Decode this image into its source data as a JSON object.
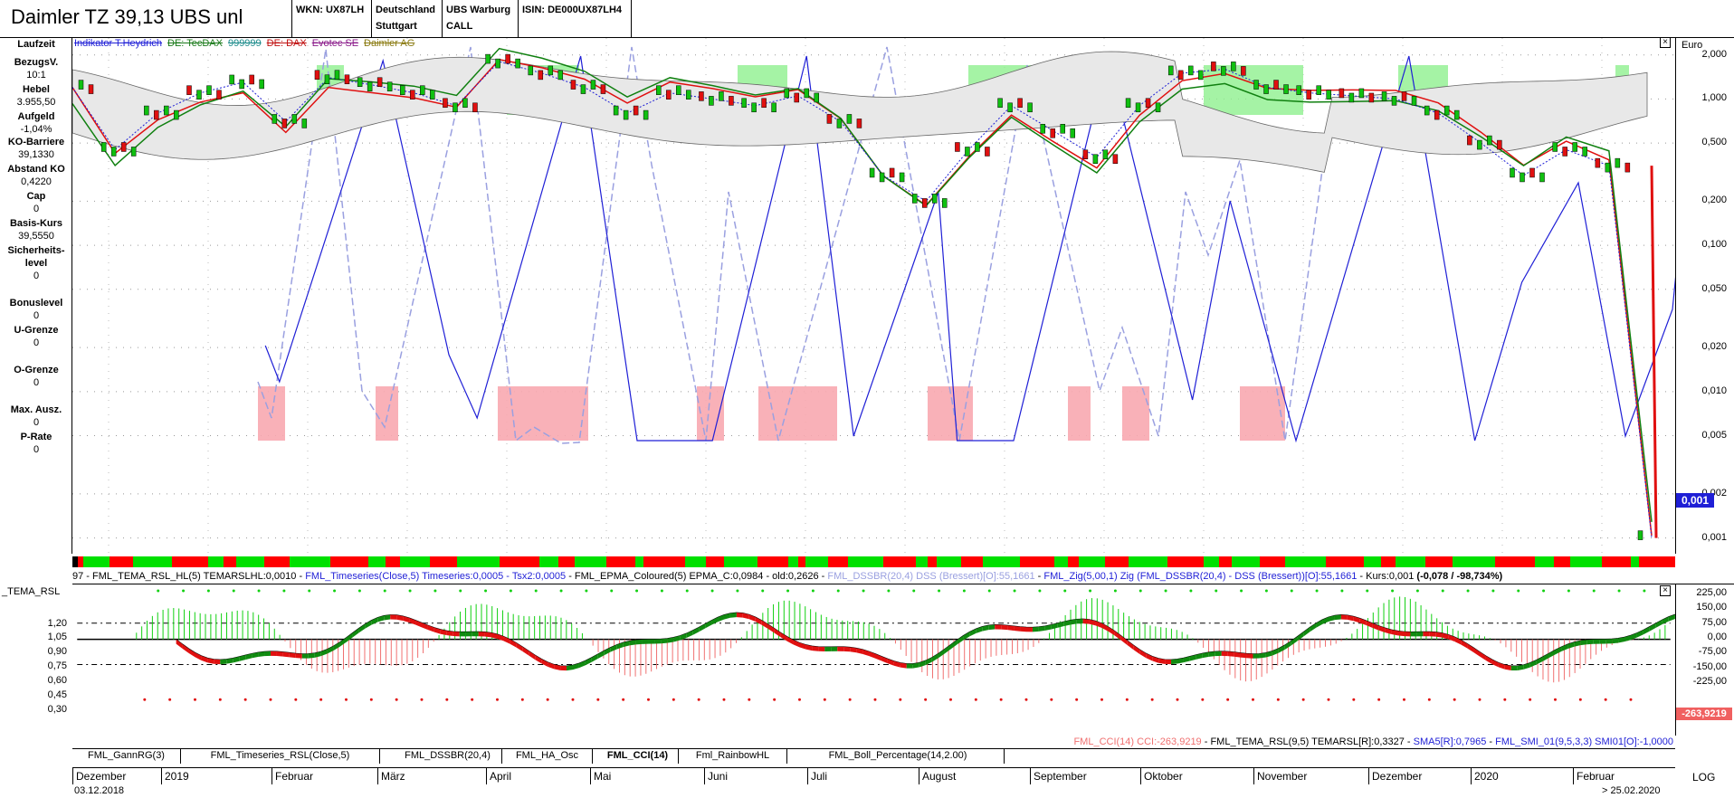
{
  "header": {
    "title": "Daimler TZ 39,13     UBS  unl",
    "boxes": [
      {
        "line1": "WKN: UX87LH",
        "line2": ""
      },
      {
        "line1": "Deutschland",
        "line2": "Stuttgart"
      },
      {
        "line1": "UBS Warburg",
        "line2": "CALL"
      },
      {
        "line1": "ISIN: DE000UX87LH4",
        "line2": ""
      }
    ]
  },
  "info": [
    {
      "label": "Laufzeit",
      "value": ""
    },
    {
      "label": "BezugsV.",
      "value": "10:1"
    },
    {
      "label": "Hebel",
      "value": "3.955,50"
    },
    {
      "label": "Aufgeld",
      "value": "-1,04%"
    },
    {
      "label": "KO-Barriere",
      "value": "39,1330"
    },
    {
      "label": "Abstand KO",
      "value": "0,4220"
    },
    {
      "label": "Cap",
      "value": "0"
    },
    {
      "label": "Basis-Kurs",
      "value": "39,5550"
    },
    {
      "label": "Sicherheits-\nlevel",
      "value": "0"
    },
    {
      "label": "Bonuslevel",
      "value": "0"
    },
    {
      "label": "U-Grenze",
      "value": "0"
    },
    {
      "label": "O-Grenze",
      "value": "0"
    },
    {
      "label": "Max. Ausz.",
      "value": "0"
    },
    {
      "label": "P-Rate",
      "value": "0"
    }
  ],
  "indicator_legend": [
    {
      "text": "Indikator T.Heydrich",
      "color": "#1f1fd6"
    },
    {
      "text": "DE: TecDAX",
      "color": "#1a7a1a"
    },
    {
      "text": "999999",
      "color": "#1a8a8a"
    },
    {
      "text": "DE: DAX",
      "color": "#c01010"
    },
    {
      "text": "Evotec SE",
      "color": "#8a1a8a"
    },
    {
      "text": "Daimler AG",
      "color": "#8a7a10"
    }
  ],
  "right_axis": {
    "unit": "Euro",
    "ticks": [
      "2,000",
      "1,000",
      "0,500",
      "0,200",
      "0,100",
      "0,050",
      "0,020",
      "0,010",
      "0,005",
      "0,002",
      "0,001"
    ],
    "price_badge": "0,001"
  },
  "legend1": [
    {
      "text": "97 - FML_TEMA_RSL_HL(5) TEMARSLHL:0,0010 - ",
      "color": "#000"
    },
    {
      "text": "FML_Timeseries(Close,5) Timeseries:0,0005 - Tsx2:0,0005",
      "color": "#1f1fd6"
    },
    {
      "text": " - FML_EPMA_Coloured(5) EPMA_C:0,0984 - old:0,2626 - ",
      "color": "#000"
    },
    {
      "text": "FML_DSSBR(20,4) DSS (Bressert)[O]:55,1661",
      "color": "#9aa0e0"
    },
    {
      "text": " - ",
      "color": "#000"
    },
    {
      "text": "FML_Zig(5,00,1) Zig (FML_DSSBR(20,4) - DSS (Bressert))[O]:55,1661",
      "color": "#1f1fd6"
    },
    {
      "text": " - Kurs:0,001 ",
      "color": "#000"
    },
    {
      "text": "(-0,078 / -98,734%)",
      "color": "#000"
    }
  ],
  "sub": {
    "title": "_TEMA_RSL",
    "left_ticks": [
      "1,20",
      "1,05",
      "0,90",
      "0,75",
      "0,60",
      "0,45",
      "0,30"
    ],
    "right_ticks": [
      "225,00",
      "150,00",
      "75,00",
      "0,00",
      "-75,00",
      "-150,00",
      "-225,00"
    ],
    "cci_badge": "-263,9219"
  },
  "legend2": [
    {
      "text": "FML_CCI(14) CCI:-263,9219",
      "color": "#f07070"
    },
    {
      "text": " - FML_TEMA_RSL(9,5) TEMARSL[R]:0,3327 - ",
      "color": "#000"
    },
    {
      "text": "SMA5[R]:0,7965",
      "color": "#1f1fd6"
    },
    {
      "text": " - ",
      "color": "#000"
    },
    {
      "text": "FML_SMI_01(9,5,3,3) SMI01[O]:-1,0000",
      "color": "#1f1fd6"
    }
  ],
  "tabs": [
    "FML_GannRG(3)",
    "FML_Timeseries_RSL(Close,5)",
    "FML_DSSBR(20,4)",
    "FML_HA_Osc",
    "FML_CCI(14)",
    "Fml_RainbowHL",
    "FML_Boll_Percentage(14,2.00)"
  ],
  "active_tab": "FML_CCI(14)",
  "timeline": {
    "months": [
      "Dezember",
      "2019",
      "Februar",
      "März",
      "April",
      "Mai",
      "Juni",
      "Juli",
      "August",
      "September",
      "Oktober",
      "November",
      "Dezember",
      "2020",
      "Februar"
    ],
    "start_date": "03.12.2018",
    "end_date": "> 25.02.2020",
    "scale": "LOG"
  },
  "colors": {
    "up": "#00e000",
    "down": "#ff0000",
    "zig": "#1f1fd6",
    "dss": "#9aa0e0"
  },
  "chart_data": {
    "type": "line",
    "title": "Daimler TZ 39,13     UBS  unl",
    "ylabel": "Euro",
    "yscale": "log",
    "ylim": [
      0.0009,
      2.2
    ],
    "x_start": "03.12.2018",
    "x_end": "25.02.2020",
    "series": [
      {
        "name": "Kurs",
        "values": [
          1.2,
          0.45,
          0.8,
          1.1,
          1.3,
          0.7,
          1.4,
          1.25,
          1.1,
          0.9,
          1.8,
          1.5,
          1.2,
          0.8,
          1.1,
          1.0,
          0.9,
          1.05,
          0.7,
          0.3,
          0.2,
          0.45,
          0.9,
          0.6,
          0.4,
          0.9,
          1.5,
          1.6,
          1.2,
          1.1,
          1.05,
          1.0,
          0.8,
          0.5,
          0.3,
          0.45,
          0.35,
          0.001
        ]
      }
    ]
  }
}
